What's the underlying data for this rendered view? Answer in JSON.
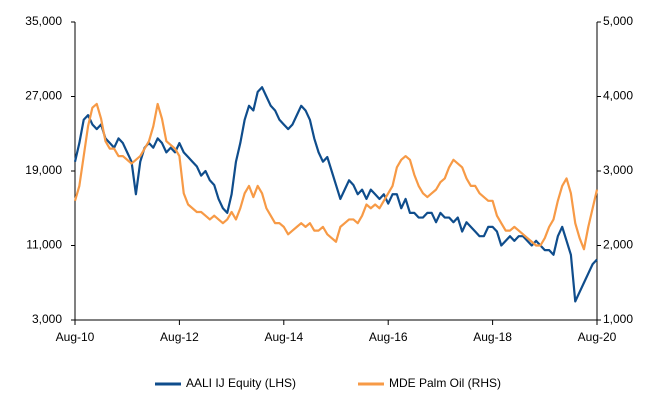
{
  "chart_data": {
    "type": "line",
    "x": [
      "Aug-10",
      "Sep-10",
      "Oct-10",
      "Nov-10",
      "Dec-10",
      "Jan-11",
      "Feb-11",
      "Mar-11",
      "Apr-11",
      "May-11",
      "Jun-11",
      "Jul-11",
      "Aug-11",
      "Sep-11",
      "Oct-11",
      "Nov-11",
      "Dec-11",
      "Jan-12",
      "Feb-12",
      "Mar-12",
      "Apr-12",
      "May-12",
      "Jun-12",
      "Jul-12",
      "Aug-12",
      "Sep-12",
      "Oct-12",
      "Nov-12",
      "Dec-12",
      "Jan-13",
      "Feb-13",
      "Mar-13",
      "Apr-13",
      "May-13",
      "Jun-13",
      "Jul-13",
      "Aug-13",
      "Sep-13",
      "Oct-13",
      "Nov-13",
      "Dec-13",
      "Jan-14",
      "Feb-14",
      "Mar-14",
      "Apr-14",
      "May-14",
      "Jun-14",
      "Jul-14",
      "Aug-14",
      "Sep-14",
      "Oct-14",
      "Nov-14",
      "Dec-14",
      "Jan-15",
      "Feb-15",
      "Mar-15",
      "Apr-15",
      "May-15",
      "Jun-15",
      "Jul-15",
      "Aug-15",
      "Sep-15",
      "Oct-15",
      "Nov-15",
      "Dec-15",
      "Jan-16",
      "Feb-16",
      "Mar-16",
      "Apr-16",
      "May-16",
      "Jun-16",
      "Jul-16",
      "Aug-16",
      "Sep-16",
      "Oct-16",
      "Nov-16",
      "Dec-16",
      "Jan-17",
      "Feb-17",
      "Mar-17",
      "Apr-17",
      "May-17",
      "Jun-17",
      "Jul-17",
      "Aug-17",
      "Sep-17",
      "Oct-17",
      "Nov-17",
      "Dec-17",
      "Jan-18",
      "Feb-18",
      "Mar-18",
      "Apr-18",
      "May-18",
      "Jun-18",
      "Jul-18",
      "Aug-18",
      "Sep-18",
      "Oct-18",
      "Nov-18",
      "Dec-18",
      "Jan-19",
      "Feb-19",
      "Mar-19",
      "Apr-19",
      "May-19",
      "Jun-19",
      "Jul-19",
      "Aug-19",
      "Sep-19",
      "Oct-19",
      "Nov-19",
      "Dec-19",
      "Jan-20",
      "Feb-20",
      "Mar-20",
      "Apr-20",
      "May-20",
      "Jun-20",
      "Jul-20",
      "Aug-20"
    ],
    "xticks": [
      "Aug-10",
      "Aug-12",
      "Aug-14",
      "Aug-16",
      "Aug-18",
      "Aug-20"
    ],
    "ylim": [
      3000,
      35000
    ],
    "yticks": [
      {
        "value": 3000,
        "label": "3,000"
      },
      {
        "value": 11000,
        "label": "11,000"
      },
      {
        "value": 19000,
        "label": "19,000"
      },
      {
        "value": 27000,
        "label": "27,000"
      },
      {
        "value": 35000,
        "label": "35,000"
      }
    ],
    "y2lim": [
      1000,
      5000
    ],
    "y2ticks": [
      {
        "value": 1000,
        "label": "1,000"
      },
      {
        "value": 2000,
        "label": "2,000"
      },
      {
        "value": 3000,
        "label": "3,000"
      },
      {
        "value": 4000,
        "label": "4,000"
      },
      {
        "value": 5000,
        "label": "5,000"
      }
    ],
    "legend": "bottom",
    "series": [
      {
        "name": "AALI IJ Equity (LHS)",
        "color": "#0f4d8c",
        "axis": "y",
        "values": [
          20000,
          22000,
          24500,
          25000,
          24000,
          23500,
          24000,
          22500,
          22000,
          21500,
          22500,
          22000,
          21000,
          20000,
          16500,
          20000,
          21500,
          22000,
          21500,
          22500,
          22000,
          21000,
          21500,
          21000,
          22000,
          21000,
          20500,
          20000,
          19500,
          18500,
          19000,
          18000,
          17500,
          16000,
          15000,
          14500,
          16500,
          20000,
          22000,
          24500,
          26000,
          25500,
          27500,
          28000,
          27000,
          26000,
          25500,
          24500,
          24000,
          23500,
          24000,
          25000,
          26000,
          25500,
          24500,
          22500,
          21000,
          20000,
          20500,
          19000,
          17500,
          16000,
          17000,
          18000,
          17500,
          16500,
          17000,
          16000,
          17000,
          16500,
          16000,
          16500,
          15500,
          16500,
          16500,
          15000,
          16000,
          14500,
          14500,
          14000,
          14000,
          14500,
          14500,
          13500,
          14500,
          14000,
          14000,
          13500,
          14000,
          12500,
          13500,
          13000,
          12500,
          12000,
          12000,
          13000,
          13000,
          12500,
          11000,
          11500,
          12000,
          11500,
          12000,
          12000,
          11500,
          11000,
          11500,
          11000,
          10500,
          10500,
          10000,
          12000,
          13000,
          11500,
          10000,
          5000,
          6000,
          7000,
          8000,
          9000,
          9500
        ]
      },
      {
        "name": "MDE Palm Oil (RHS)",
        "color": "#f79a46",
        "axis": "y2",
        "values": [
          2600,
          2800,
          3200,
          3600,
          3850,
          3900,
          3700,
          3400,
          3300,
          3300,
          3200,
          3200,
          3150,
          3100,
          3150,
          3200,
          3300,
          3400,
          3600,
          3900,
          3700,
          3400,
          3350,
          3300,
          3200,
          2700,
          2550,
          2500,
          2450,
          2450,
          2400,
          2350,
          2400,
          2350,
          2300,
          2350,
          2450,
          2350,
          2500,
          2700,
          2800,
          2650,
          2800,
          2700,
          2500,
          2400,
          2300,
          2300,
          2250,
          2150,
          2200,
          2250,
          2300,
          2250,
          2300,
          2200,
          2200,
          2250,
          2150,
          2100,
          2050,
          2250,
          2300,
          2350,
          2350,
          2300,
          2400,
          2550,
          2500,
          2550,
          2500,
          2600,
          2700,
          2800,
          3050,
          3150,
          3200,
          3150,
          2950,
          2800,
          2700,
          2650,
          2700,
          2750,
          2850,
          2900,
          3050,
          3150,
          3100,
          3050,
          2900,
          2800,
          2800,
          2700,
          2650,
          2600,
          2600,
          2400,
          2300,
          2200,
          2200,
          2250,
          2200,
          2150,
          2100,
          2050,
          2000,
          2000,
          2100,
          2250,
          2350,
          2600,
          2800,
          2900,
          2700,
          2300,
          2100,
          1950,
          2250,
          2500,
          2750
        ]
      }
    ]
  }
}
